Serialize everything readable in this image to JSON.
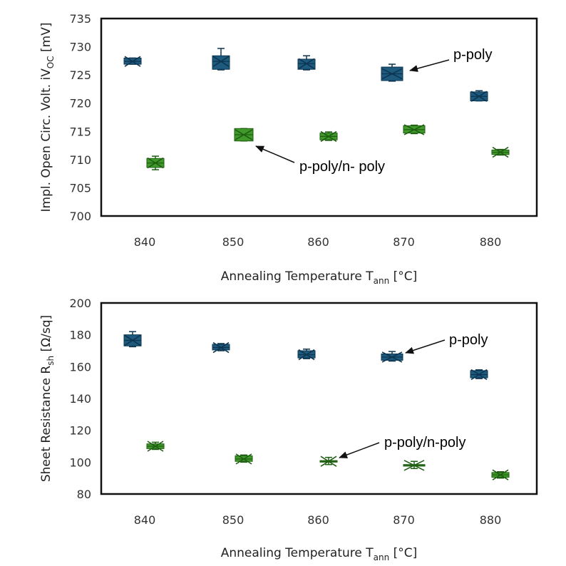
{
  "colors": {
    "p_poly": "#1d5a7e",
    "p_poly_dark": "#0d3550",
    "p_poly_n_poly": "#3f9a2a",
    "p_poly_n_poly_dark": "#1f5e12",
    "frame": "#111111",
    "arrow": "#111111"
  },
  "chart_data": [
    {
      "type": "box",
      "ylabel": {
        "main": "Impl. Open Circ. Volt.  iV",
        "sub": "OC",
        "unit": " [mV]"
      },
      "xlabel": {
        "main": "Annealing Temperature T",
        "sub": "ann",
        "unit": " [°C]"
      },
      "categories": [
        "840",
        "850",
        "860",
        "870",
        "880"
      ],
      "yticks": [
        "700",
        "705",
        "710",
        "715",
        "720",
        "725",
        "730",
        "735"
      ],
      "ylim": [
        700,
        735
      ],
      "grid": false,
      "series": [
        {
          "name": "p-poly",
          "boxes": [
            {
              "x": 840,
              "min": 726.9,
              "q1": 726.9,
              "median": 727.4,
              "q3": 728.0,
              "max": 728.0
            },
            {
              "x": 850,
              "min": 725.9,
              "q1": 726.0,
              "median": 727.4,
              "q3": 728.4,
              "max": 729.7
            },
            {
              "x": 860,
              "min": 725.9,
              "q1": 726.0,
              "median": 727.0,
              "q3": 727.8,
              "max": 728.4
            },
            {
              "x": 870,
              "min": 723.9,
              "q1": 724.0,
              "median": 725.2,
              "q3": 726.4,
              "max": 726.9
            },
            {
              "x": 880,
              "min": 720.4,
              "q1": 720.4,
              "median": 721.2,
              "q3": 722.0,
              "max": 722.2
            }
          ]
        },
        {
          "name": "p-poly/n- poly",
          "boxes": [
            {
              "x": 840,
              "min": 708.2,
              "q1": 708.6,
              "median": 709.4,
              "q3": 710.2,
              "max": 710.6
            },
            {
              "x": 850,
              "min": 713.3,
              "q1": 713.3,
              "median": 714.4,
              "q3": 715.5,
              "max": 715.5
            },
            {
              "x": 860,
              "min": 713.4,
              "q1": 713.5,
              "median": 714.1,
              "q3": 714.7,
              "max": 714.9
            },
            {
              "x": 870,
              "min": 714.6,
              "q1": 714.7,
              "median": 715.3,
              "q3": 716.0,
              "max": 716.1
            },
            {
              "x": 880,
              "min": 710.8,
              "q1": 710.9,
              "median": 711.3,
              "q3": 711.7,
              "max": 711.8
            }
          ]
        }
      ],
      "annotations": [
        {
          "text": "p-poly",
          "series": 0,
          "target_x": 870
        },
        {
          "text": "p-poly/n- poly",
          "series": 1,
          "target_x": 850
        }
      ]
    },
    {
      "type": "box",
      "ylabel": {
        "main": "Sheet Resistance R",
        "sub": "sh",
        "unit": " [Ω/sq]"
      },
      "xlabel": {
        "main": "Annealing Temperature T",
        "sub": "ann",
        "unit": " [°C]"
      },
      "categories": [
        "840",
        "850",
        "860",
        "870",
        "880"
      ],
      "yticks": [
        "80",
        "100",
        "120",
        "140",
        "160",
        "180",
        "200"
      ],
      "ylim": [
        80,
        200
      ],
      "grid": false,
      "series": [
        {
          "name": "p-poly",
          "boxes": [
            {
              "x": 840,
              "min": 172.5,
              "q1": 173.0,
              "median": 176.5,
              "q3": 180.0,
              "max": 182.0
            },
            {
              "x": 850,
              "min": 170.0,
              "q1": 170.5,
              "median": 172.0,
              "q3": 174.0,
              "max": 174.5
            },
            {
              "x": 860,
              "min": 165.0,
              "q1": 165.5,
              "median": 167.5,
              "q3": 170.0,
              "max": 171.0
            },
            {
              "x": 870,
              "min": 163.5,
              "q1": 164.0,
              "median": 166.0,
              "q3": 168.0,
              "max": 169.5
            },
            {
              "x": 880,
              "min": 152.5,
              "q1": 153.0,
              "median": 155.0,
              "q3": 157.5,
              "max": 158.0
            }
          ]
        },
        {
          "name": "p-poly/n-poly",
          "boxes": [
            {
              "x": 840,
              "min": 108.0,
              "q1": 108.5,
              "median": 110.0,
              "q3": 111.5,
              "max": 112.5
            },
            {
              "x": 850,
              "min": 100.0,
              "q1": 100.5,
              "median": 102.0,
              "q3": 104.0,
              "max": 104.5
            },
            {
              "x": 860,
              "min": 98.5,
              "q1": 100.0,
              "median": 100.5,
              "q3": 101.0,
              "max": 103.0
            },
            {
              "x": 870,
              "min": 96.0,
              "q1": 97.5,
              "median": 98.0,
              "q3": 98.5,
              "max": 100.5
            },
            {
              "x": 880,
              "min": 90.0,
              "q1": 90.5,
              "median": 92.0,
              "q3": 93.5,
              "max": 94.0
            }
          ]
        }
      ],
      "annotations": [
        {
          "text": "p-poly",
          "series": 0,
          "target_x": 870
        },
        {
          "text": "p-poly/n-poly",
          "series": 1,
          "target_x": 860
        }
      ]
    }
  ]
}
